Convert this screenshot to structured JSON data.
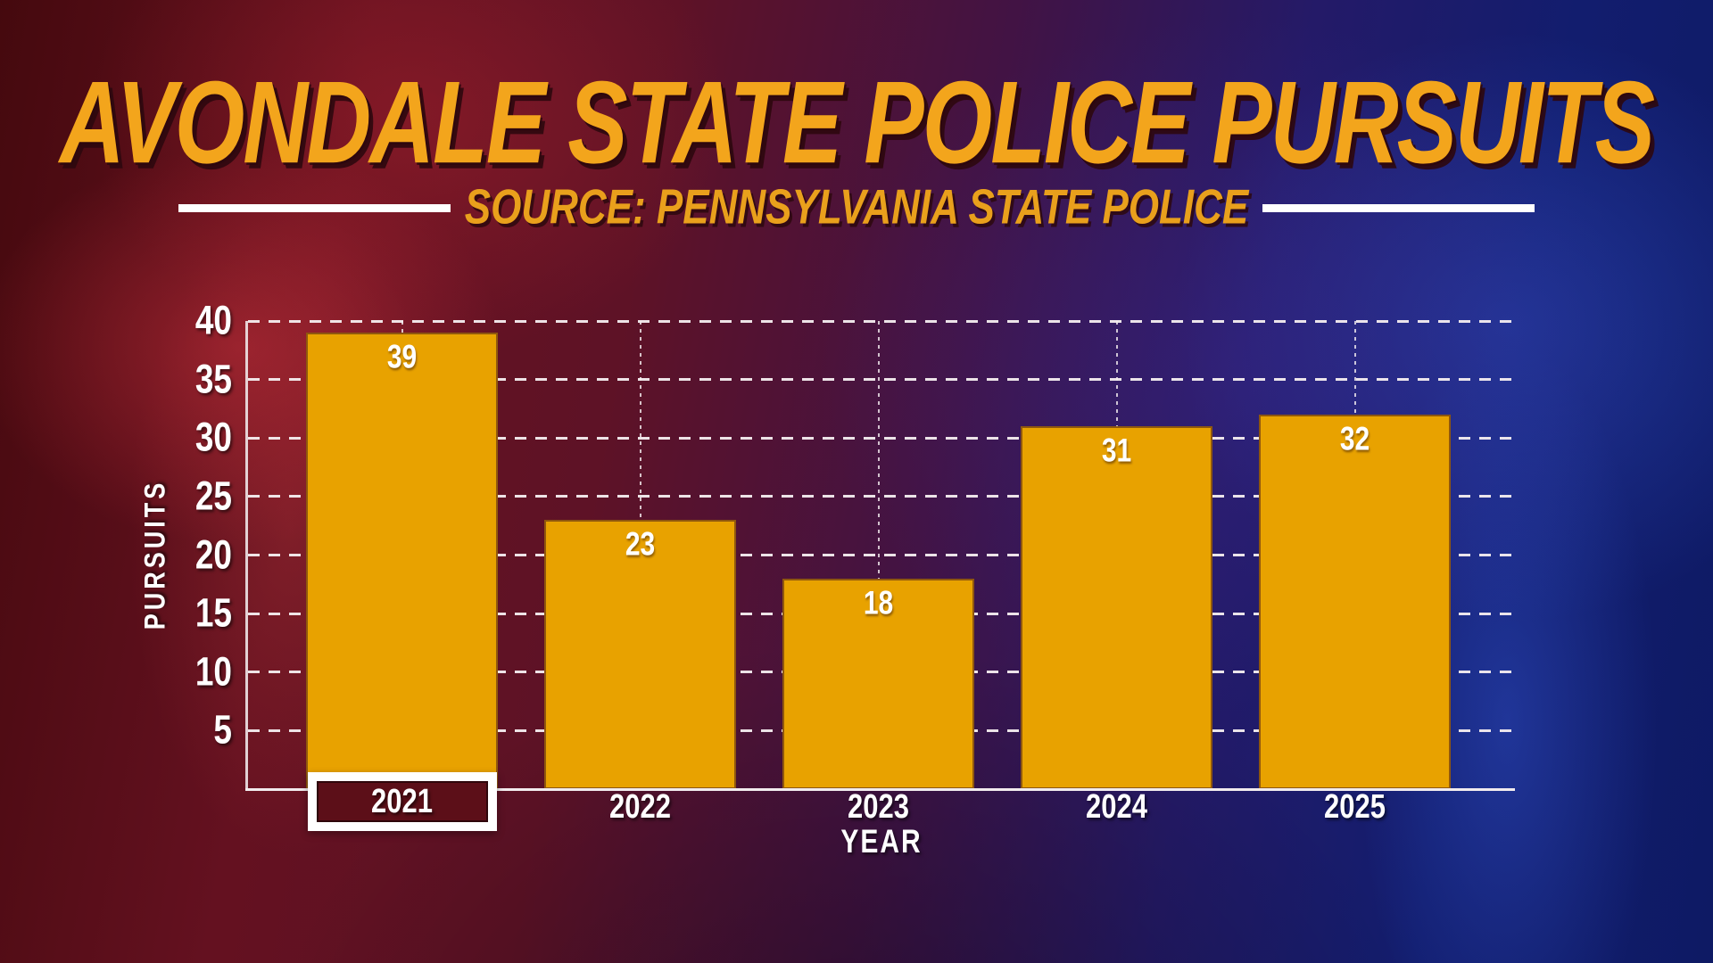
{
  "header": {
    "title": "AVONDALE STATE POLICE PURSUITS",
    "source": "SOURCE: PENNSYLVANIA STATE POLICE"
  },
  "chart_data": {
    "type": "bar",
    "title": "AVONDALE STATE POLICE PURSUITS",
    "source": "SOURCE: PENNSYLVANIA STATE POLICE",
    "categories": [
      "2021",
      "2022",
      "2023",
      "2024",
      "2025"
    ],
    "values": [
      39,
      23,
      18,
      31,
      32
    ],
    "xlabel": "YEAR",
    "ylabel": "PURSUITS",
    "ylim": [
      0,
      40
    ],
    "yticks": [
      5,
      10,
      15,
      20,
      25,
      30,
      35,
      40
    ],
    "grid": "horizontal dashed white lines at each ytick; vertical dotted white line at each bar center",
    "legend": "none",
    "highlighted_category": "2021",
    "bar_labels_shown_inside_bar_top": true
  },
  "colors": {
    "title_text": "#F3A51C",
    "source_text": "#E9A01C",
    "bar_fill": "#E8A200",
    "chart_text": "#FFFFFF",
    "gridline": "#F5EEF0",
    "highlight_box_border": "#FFFFFF",
    "highlight_box_fill": "#5C0F18",
    "background_left": "#5E101C",
    "background_right": "#101C66"
  }
}
